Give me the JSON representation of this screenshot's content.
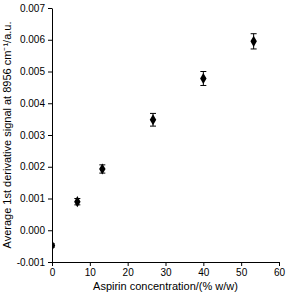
{
  "chart_data": {
    "type": "scatter",
    "x_label": "Aspirin concentration/(% w/w)",
    "y_label": "Average 1st derivative signal at 8956 cm⁻¹/a.u.",
    "x": [
      0,
      6.7,
      13.3,
      26.7,
      40,
      53.3
    ],
    "values": [
      -0.00048,
      0.0009,
      0.00193,
      0.00348,
      0.00478,
      0.00595
    ],
    "errors": [
      5e-05,
      0.0001,
      0.00013,
      0.0002,
      0.00022,
      0.00024
    ],
    "color": "#000000",
    "marker": "diamond",
    "xlim": [
      0,
      60
    ],
    "xticks": [
      0,
      10,
      20,
      30,
      40,
      50,
      60
    ],
    "ylim": [
      -0.001,
      0.007
    ],
    "yticks": [
      -0.001,
      {
        "value": 0,
        "label": "0.000"
      },
      0.001,
      0.002,
      0.003,
      0.004,
      0.005,
      0.006,
      0.007
    ]
  }
}
